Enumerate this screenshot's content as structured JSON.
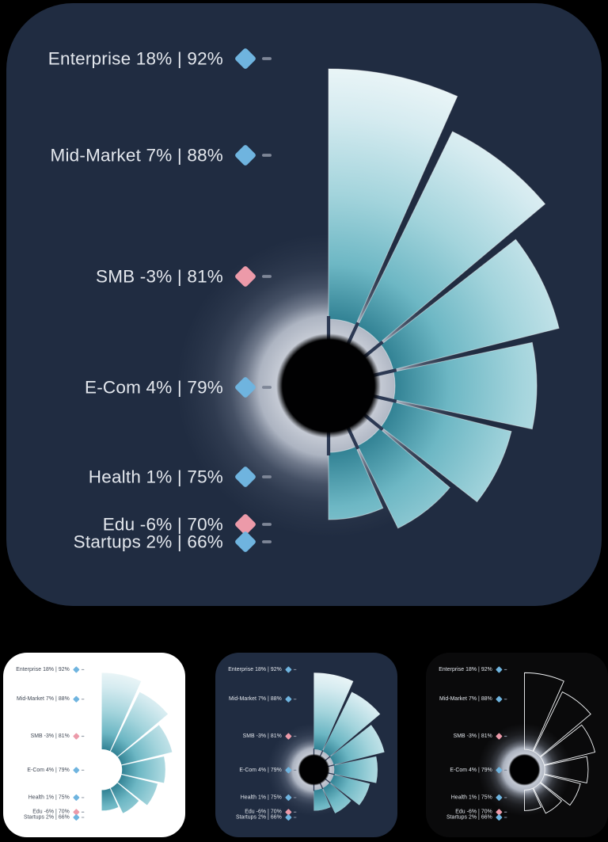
{
  "chart_data": {
    "type": "radial_fan",
    "description": "Fan / rose chart of seven segments, wedge length encodes the second percentage; diamond markers colored by sign of growth percentage",
    "legend_position": "left",
    "marker_shape": "diamond",
    "angles": {
      "start_deg": 0,
      "slot_deg": 26,
      "wedge_deg": 24,
      "total_deg": 180
    },
    "items": [
      {
        "label": "Enterprise 18% | 92%",
        "name": "Enterprise",
        "growth_pct": 18,
        "value_pct": 92,
        "trend": "up"
      },
      {
        "label": "Mid-Market 7% | 88%",
        "name": "Mid-Market",
        "growth_pct": 7,
        "value_pct": 88,
        "trend": "up"
      },
      {
        "label": "SMB -3% | 81%",
        "name": "SMB",
        "growth_pct": -3,
        "value_pct": 81,
        "trend": "down"
      },
      {
        "label": "E-Com 4% | 79%",
        "name": "E-Com",
        "growth_pct": 4,
        "value_pct": 79,
        "trend": "up"
      },
      {
        "label": "Health 1% | 75%",
        "name": "Health",
        "growth_pct": 1,
        "value_pct": 75,
        "trend": "up"
      },
      {
        "label": "Edu -6% | 70%",
        "name": "Edu",
        "growth_pct": -6,
        "value_pct": 70,
        "trend": "down"
      },
      {
        "label": "Startups 2% | 66%",
        "name": "Startups",
        "growth_pct": 2,
        "value_pct": 66,
        "trend": "up"
      }
    ]
  },
  "colors": {
    "page_bg": "#000000",
    "navy_card_bg": "#202c41",
    "white_card_bg": "#ffffff",
    "black_card_bg": "#0a0a0b",
    "marker_up": "#6fb4df",
    "marker_down": "#ec9aa9",
    "dash_dark_theme": "#7e8697",
    "dash_light_theme": "#9aa2ad",
    "label_dark_theme": "#e3e7ed",
    "label_light_theme": "#3f4754",
    "wedge_gradient_inner": "#1a5e6e",
    "wedge_gradient_mid": "#6db7c4",
    "wedge_gradient_outer": "#eaf5f7",
    "glow": "#c7ccd6",
    "center_dot": "#010102",
    "outline_wedge_stroke": "#f2f4f6"
  },
  "variants": [
    {
      "id": "main",
      "theme": "navy",
      "style": "filled wedges, glow, black center"
    },
    {
      "id": "light",
      "theme": "white",
      "style": "filled wedges, no glow, open center"
    },
    {
      "id": "navy",
      "theme": "navy",
      "style": "filled wedges, glow, black center"
    },
    {
      "id": "black",
      "theme": "black",
      "style": "outlined wedges, glow, black center"
    }
  ]
}
